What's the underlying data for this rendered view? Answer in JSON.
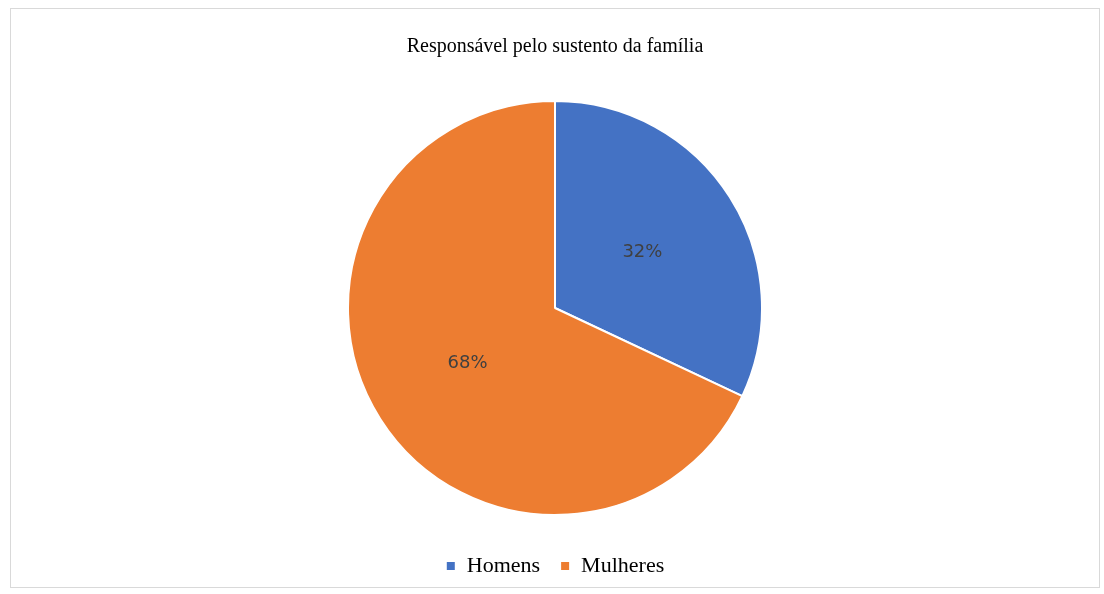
{
  "chart_data": {
    "type": "pie",
    "title": "Responsável pelo sustento da família",
    "categories": [
      "Homens",
      "Mulheres"
    ],
    "values": [
      32,
      68
    ],
    "colors": [
      "#4472c4",
      "#ed7d31"
    ],
    "value_labels": [
      "32%",
      "68%"
    ],
    "legend": "bottom"
  }
}
